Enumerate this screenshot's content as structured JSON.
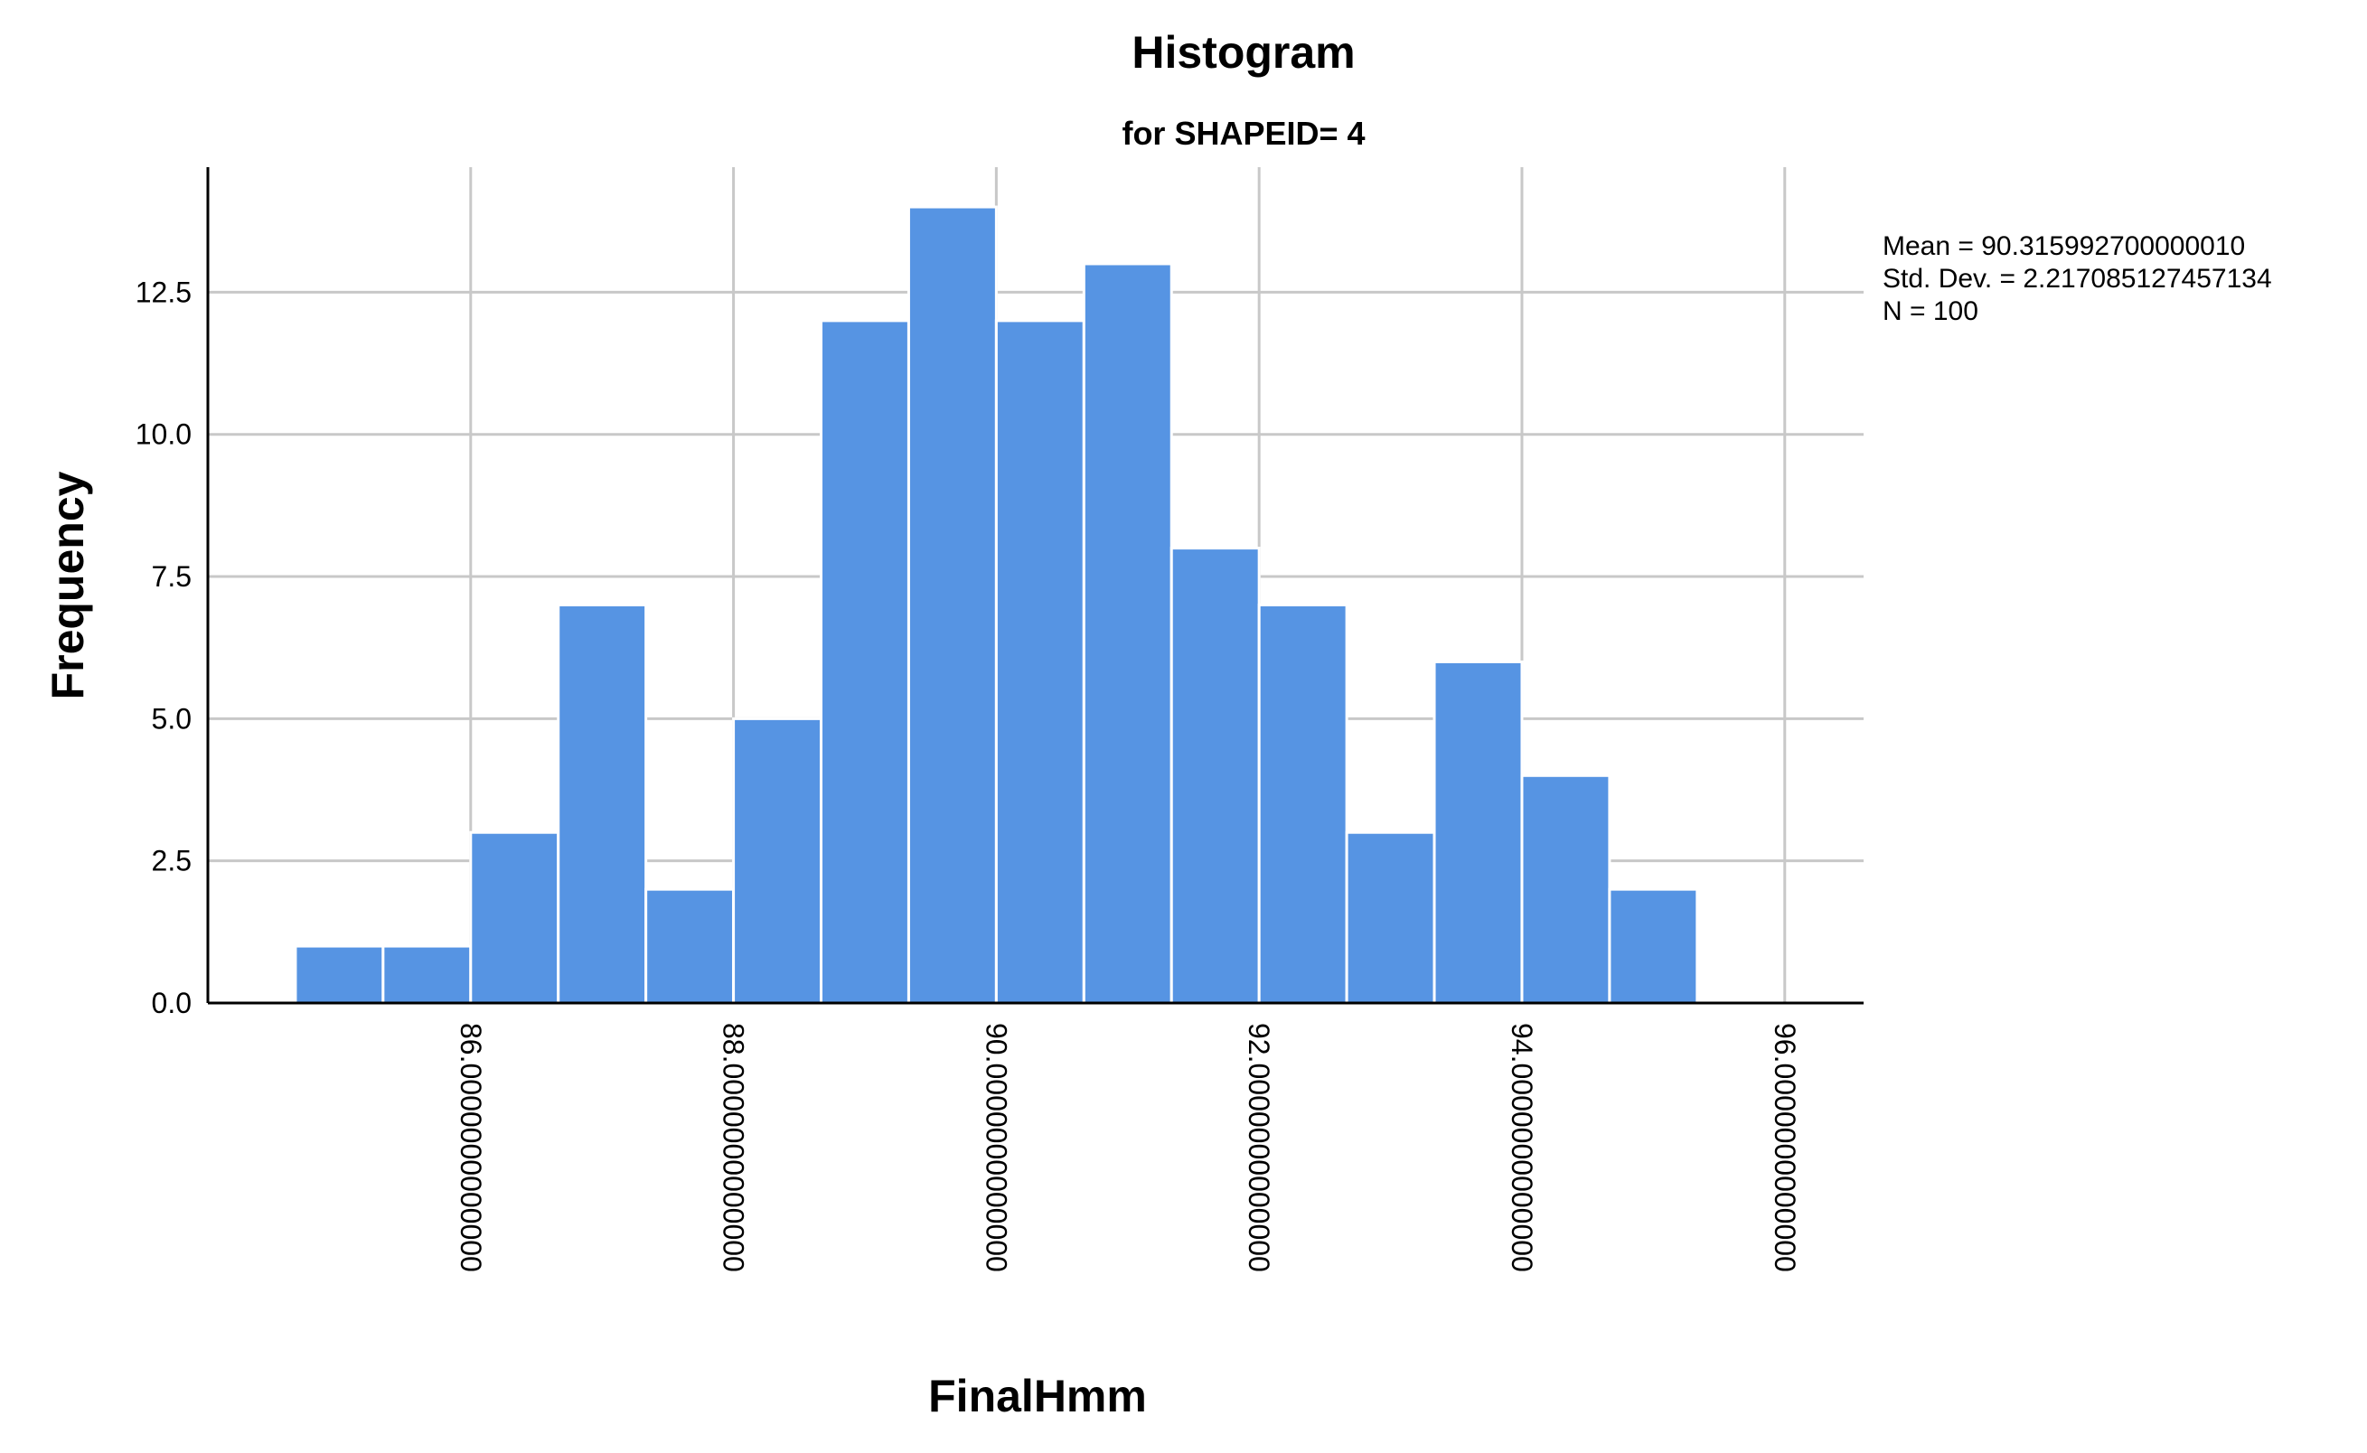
{
  "chart_data": {
    "type": "bar",
    "title": "Histogram",
    "subtitle": "for SHAPEID= 4",
    "xlabel": "FinalHmm",
    "ylabel": "Frequency",
    "bin_width": 0.6667,
    "bins": [
      {
        "start": 84.6667,
        "end": 85.3333,
        "value": 1
      },
      {
        "start": 85.3333,
        "end": 86.0,
        "value": 1
      },
      {
        "start": 86.0,
        "end": 86.6667,
        "value": 3
      },
      {
        "start": 86.6667,
        "end": 87.3333,
        "value": 7
      },
      {
        "start": 87.3333,
        "end": 88.0,
        "value": 2
      },
      {
        "start": 88.0,
        "end": 88.6667,
        "value": 5
      },
      {
        "start": 88.6667,
        "end": 89.3333,
        "value": 12
      },
      {
        "start": 89.3333,
        "end": 90.0,
        "value": 14
      },
      {
        "start": 90.0,
        "end": 90.6667,
        "value": 12
      },
      {
        "start": 90.6667,
        "end": 91.3333,
        "value": 13
      },
      {
        "start": 91.3333,
        "end": 92.0,
        "value": 8
      },
      {
        "start": 92.0,
        "end": 92.6667,
        "value": 7
      },
      {
        "start": 92.6667,
        "end": 93.3333,
        "value": 3
      },
      {
        "start": 93.3333,
        "end": 94.0,
        "value": 6
      },
      {
        "start": 94.0,
        "end": 94.6667,
        "value": 4
      },
      {
        "start": 94.6667,
        "end": 95.3333,
        "value": 2
      }
    ],
    "xticks": [
      {
        "value": 86,
        "label": "86.0000000000000"
      },
      {
        "value": 88,
        "label": "88.0000000000000"
      },
      {
        "value": 90,
        "label": "90.0000000000000"
      },
      {
        "value": 92,
        "label": "92.0000000000000"
      },
      {
        "value": 94,
        "label": "94.0000000000000"
      },
      {
        "value": 96,
        "label": "96.0000000000000"
      }
    ],
    "yticks": [
      {
        "value": 0,
        "label": "0.0"
      },
      {
        "value": 2.5,
        "label": "2.5"
      },
      {
        "value": 5,
        "label": "5.0"
      },
      {
        "value": 7.5,
        "label": "7.5"
      },
      {
        "value": 10,
        "label": "10.0"
      },
      {
        "value": 12.5,
        "label": "12.5"
      }
    ],
    "xlim": [
      84.0,
      96.6
    ],
    "ylim": [
      0,
      14.7
    ],
    "grid": true,
    "bar_color": "#5694e3",
    "stats": {
      "mean": "Mean = 90.315992700000010",
      "std_dev": "Std. Dev. = 2.217085127457134",
      "n": "N = 100"
    },
    "legend_position": "top-right"
  }
}
